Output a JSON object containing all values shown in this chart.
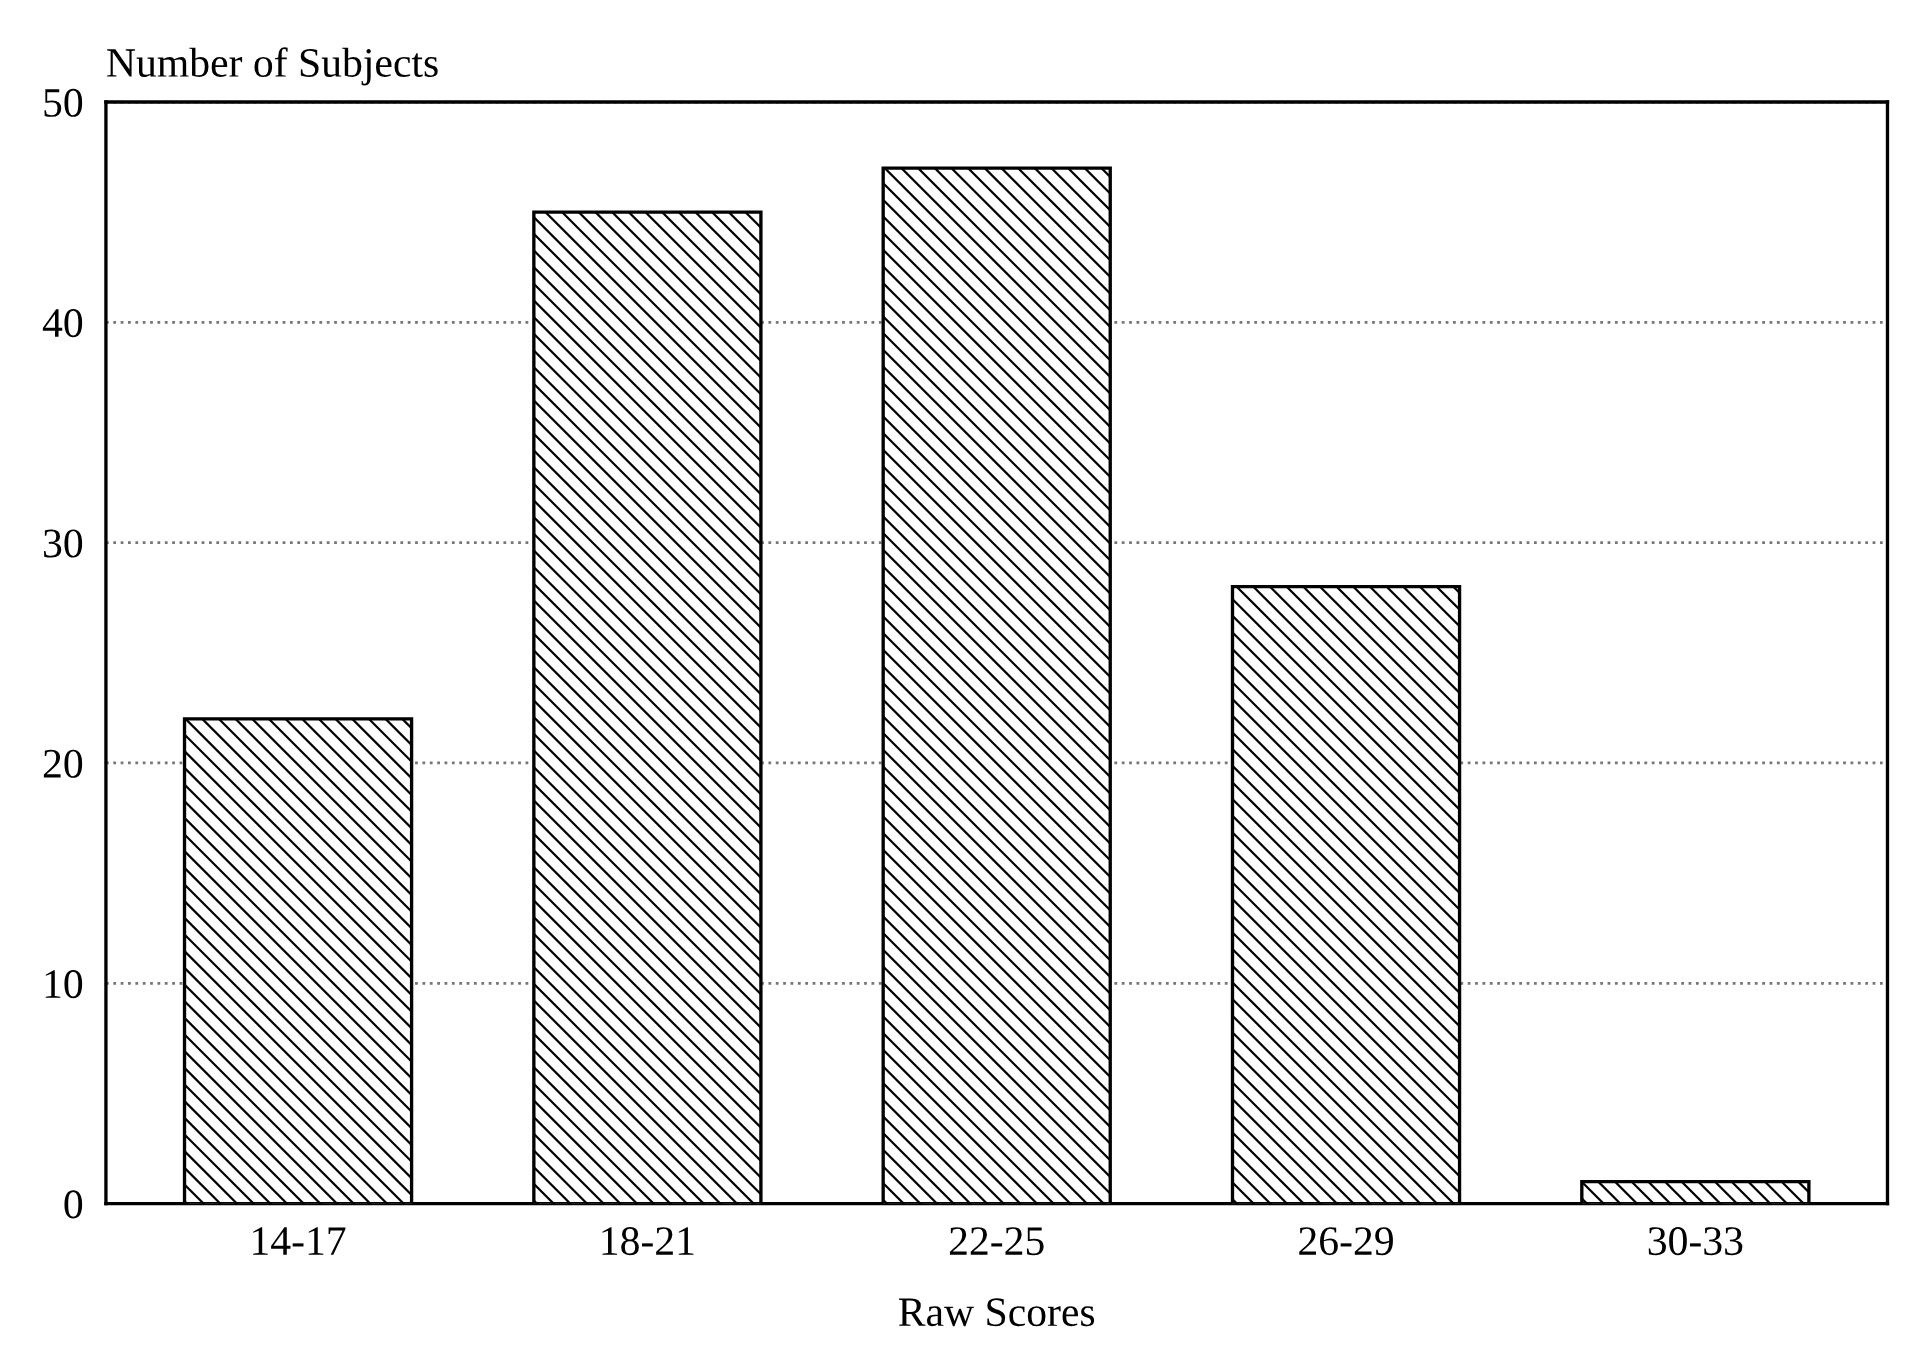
{
  "chart_data": {
    "type": "bar",
    "xlabel": "Raw Scores",
    "ylabel": "Number of Subjects",
    "categories": [
      "14-17",
      "18-21",
      "22-25",
      "26-29",
      "30-33"
    ],
    "values": [
      22,
      45,
      47,
      28,
      1
    ],
    "color": "#000000",
    "ylim": [
      0,
      50
    ],
    "yticks": [
      0,
      10,
      20,
      30,
      40,
      50
    ],
    "grid": "y"
  }
}
